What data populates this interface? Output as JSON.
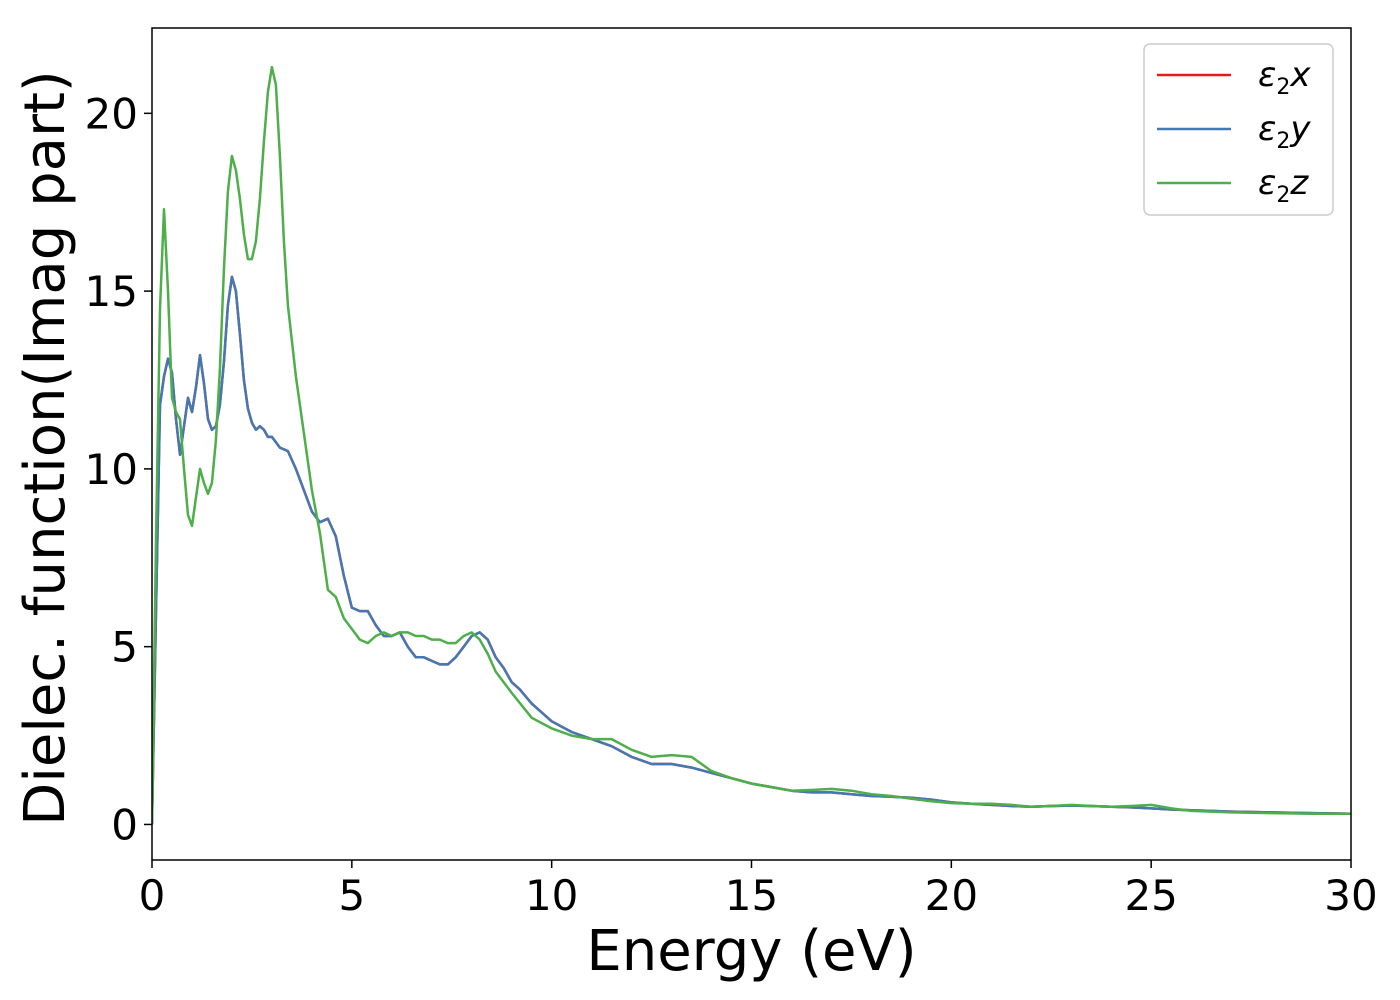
{
  "chart_data": {
    "type": "line",
    "xlabel": "Energy (eV)",
    "ylabel": "Dielec. function(Imag part)",
    "xlim": [
      0,
      30
    ],
    "ylim": [
      -1,
      22.4
    ],
    "xticks": [
      0,
      5,
      10,
      15,
      20,
      25,
      30
    ],
    "yticks": [
      0,
      5,
      10,
      15,
      20
    ],
    "legend_position": "top-right",
    "series": [
      {
        "name": "ε2x",
        "legend_main": "ε",
        "legend_sub": "2",
        "legend_var": "x",
        "color": "#e41a1c",
        "x": [
          0,
          0.1,
          0.2,
          0.3,
          0.4,
          0.5,
          0.6,
          0.7,
          0.8,
          0.9,
          1.0,
          1.1,
          1.2,
          1.3,
          1.4,
          1.5,
          1.6,
          1.7,
          1.8,
          1.9,
          2.0,
          2.1,
          2.2,
          2.3,
          2.4,
          2.5,
          2.6,
          2.7,
          2.8,
          2.9,
          3.0,
          3.2,
          3.4,
          3.6,
          3.8,
          4.0,
          4.2,
          4.4,
          4.6,
          4.8,
          5.0,
          5.2,
          5.4,
          5.6,
          5.8,
          6.0,
          6.2,
          6.4,
          6.6,
          6.8,
          7.0,
          7.2,
          7.4,
          7.6,
          7.8,
          8.0,
          8.2,
          8.4,
          8.6,
          8.8,
          9.0,
          9.2,
          9.5,
          10.0,
          10.5,
          11.0,
          11.5,
          12.0,
          12.5,
          13.0,
          13.5,
          14.0,
          14.5,
          15.0,
          15.5,
          16.0,
          16.5,
          17.0,
          17.5,
          18.0,
          18.5,
          19.0,
          19.5,
          20.0,
          20.5,
          21.0,
          21.5,
          22.0,
          22.5,
          23.0,
          23.5,
          24.0,
          24.5,
          25.0,
          25.5,
          26.0,
          26.5,
          27.0,
          27.5,
          28.0,
          28.5,
          29.0,
          29.5,
          30.0
        ],
        "y": [
          0,
          6.0,
          11.8,
          12.6,
          13.1,
          12.7,
          11.4,
          10.4,
          11.2,
          12.0,
          11.6,
          12.3,
          13.2,
          12.4,
          11.4,
          11.1,
          11.2,
          11.8,
          13.0,
          14.6,
          15.4,
          15.0,
          13.8,
          12.5,
          11.7,
          11.3,
          11.1,
          11.2,
          11.1,
          10.9,
          10.9,
          10.6,
          10.5,
          10.0,
          9.4,
          8.8,
          8.5,
          8.6,
          8.1,
          7.0,
          6.1,
          6.0,
          6.0,
          5.6,
          5.3,
          5.3,
          5.4,
          5.0,
          4.7,
          4.7,
          4.6,
          4.5,
          4.5,
          4.7,
          5.0,
          5.3,
          5.4,
          5.2,
          4.7,
          4.4,
          4.0,
          3.8,
          3.4,
          2.9,
          2.6,
          2.4,
          2.2,
          1.9,
          1.7,
          1.7,
          1.6,
          1.45,
          1.3,
          1.15,
          1.05,
          0.95,
          0.9,
          0.9,
          0.85,
          0.8,
          0.78,
          0.75,
          0.7,
          0.62,
          0.58,
          0.55,
          0.52,
          0.5,
          0.52,
          0.53,
          0.52,
          0.5,
          0.48,
          0.45,
          0.42,
          0.4,
          0.38,
          0.36,
          0.35,
          0.34,
          0.33,
          0.32,
          0.31,
          0.3
        ]
      },
      {
        "name": "ε2y",
        "legend_main": "ε",
        "legend_sub": "2",
        "legend_var": "y",
        "color": "#4478b3",
        "x": [
          0,
          0.1,
          0.2,
          0.3,
          0.4,
          0.5,
          0.6,
          0.7,
          0.8,
          0.9,
          1.0,
          1.1,
          1.2,
          1.3,
          1.4,
          1.5,
          1.6,
          1.7,
          1.8,
          1.9,
          2.0,
          2.1,
          2.2,
          2.3,
          2.4,
          2.5,
          2.6,
          2.7,
          2.8,
          2.9,
          3.0,
          3.2,
          3.4,
          3.6,
          3.8,
          4.0,
          4.2,
          4.4,
          4.6,
          4.8,
          5.0,
          5.2,
          5.4,
          5.6,
          5.8,
          6.0,
          6.2,
          6.4,
          6.6,
          6.8,
          7.0,
          7.2,
          7.4,
          7.6,
          7.8,
          8.0,
          8.2,
          8.4,
          8.6,
          8.8,
          9.0,
          9.2,
          9.5,
          10.0,
          10.5,
          11.0,
          11.5,
          12.0,
          12.5,
          13.0,
          13.5,
          14.0,
          14.5,
          15.0,
          15.5,
          16.0,
          16.5,
          17.0,
          17.5,
          18.0,
          18.5,
          19.0,
          19.5,
          20.0,
          20.5,
          21.0,
          21.5,
          22.0,
          22.5,
          23.0,
          23.5,
          24.0,
          24.5,
          25.0,
          25.5,
          26.0,
          26.5,
          27.0,
          27.5,
          28.0,
          28.5,
          29.0,
          29.5,
          30.0
        ],
        "y": [
          0,
          6.0,
          11.8,
          12.6,
          13.1,
          12.7,
          11.4,
          10.4,
          11.2,
          12.0,
          11.6,
          12.3,
          13.2,
          12.4,
          11.4,
          11.1,
          11.2,
          11.8,
          13.0,
          14.6,
          15.4,
          15.0,
          13.8,
          12.5,
          11.7,
          11.3,
          11.1,
          11.2,
          11.1,
          10.9,
          10.9,
          10.6,
          10.5,
          10.0,
          9.4,
          8.8,
          8.5,
          8.6,
          8.1,
          7.0,
          6.1,
          6.0,
          6.0,
          5.6,
          5.3,
          5.3,
          5.4,
          5.0,
          4.7,
          4.7,
          4.6,
          4.5,
          4.5,
          4.7,
          5.0,
          5.3,
          5.4,
          5.2,
          4.7,
          4.4,
          4.0,
          3.8,
          3.4,
          2.9,
          2.6,
          2.4,
          2.2,
          1.9,
          1.7,
          1.7,
          1.6,
          1.45,
          1.3,
          1.15,
          1.05,
          0.95,
          0.9,
          0.9,
          0.85,
          0.8,
          0.78,
          0.75,
          0.7,
          0.62,
          0.58,
          0.55,
          0.52,
          0.5,
          0.52,
          0.53,
          0.52,
          0.5,
          0.48,
          0.45,
          0.42,
          0.4,
          0.38,
          0.36,
          0.35,
          0.34,
          0.33,
          0.32,
          0.31,
          0.3
        ]
      },
      {
        "name": "ε2z",
        "legend_main": "ε",
        "legend_sub": "2",
        "legend_var": "z",
        "color": "#4daf4a",
        "x": [
          0,
          0.1,
          0.2,
          0.3,
          0.4,
          0.5,
          0.6,
          0.7,
          0.8,
          0.9,
          1.0,
          1.1,
          1.2,
          1.3,
          1.4,
          1.5,
          1.6,
          1.7,
          1.8,
          1.9,
          2.0,
          2.1,
          2.2,
          2.3,
          2.4,
          2.5,
          2.6,
          2.7,
          2.8,
          2.9,
          3.0,
          3.1,
          3.2,
          3.3,
          3.4,
          3.5,
          3.6,
          3.8,
          4.0,
          4.2,
          4.4,
          4.6,
          4.8,
          5.0,
          5.2,
          5.4,
          5.6,
          5.8,
          6.0,
          6.2,
          6.4,
          6.6,
          6.8,
          7.0,
          7.2,
          7.4,
          7.6,
          7.8,
          8.0,
          8.2,
          8.4,
          8.6,
          8.8,
          9.0,
          9.5,
          10.0,
          10.5,
          11.0,
          11.5,
          12.0,
          12.5,
          13.0,
          13.5,
          14.0,
          14.5,
          15.0,
          15.5,
          16.0,
          16.5,
          17.0,
          17.5,
          18.0,
          18.5,
          19.0,
          19.5,
          20.0,
          20.5,
          21.0,
          21.5,
          22.0,
          22.5,
          23.0,
          23.5,
          24.0,
          24.5,
          25.0,
          25.5,
          26.0,
          26.5,
          27.0,
          27.5,
          28.0,
          28.5,
          29.0,
          29.5,
          30.0
        ],
        "y": [
          0,
          8.0,
          14.5,
          17.3,
          15.0,
          12.0,
          11.6,
          11.4,
          10.0,
          8.7,
          8.4,
          9.2,
          10.0,
          9.6,
          9.3,
          9.6,
          10.8,
          12.8,
          15.6,
          17.8,
          18.8,
          18.4,
          17.6,
          16.6,
          15.9,
          15.9,
          16.4,
          17.6,
          19.2,
          20.6,
          21.3,
          20.8,
          18.8,
          16.4,
          14.6,
          13.6,
          12.6,
          11.0,
          9.4,
          8.2,
          6.6,
          6.4,
          5.8,
          5.5,
          5.2,
          5.1,
          5.3,
          5.4,
          5.3,
          5.4,
          5.4,
          5.3,
          5.3,
          5.2,
          5.2,
          5.1,
          5.1,
          5.3,
          5.4,
          5.2,
          4.8,
          4.3,
          4.0,
          3.7,
          3.0,
          2.7,
          2.5,
          2.4,
          2.4,
          2.1,
          1.9,
          1.95,
          1.9,
          1.5,
          1.3,
          1.15,
          1.05,
          0.95,
          0.97,
          1.0,
          0.95,
          0.85,
          0.8,
          0.72,
          0.65,
          0.6,
          0.58,
          0.58,
          0.55,
          0.5,
          0.52,
          0.55,
          0.52,
          0.5,
          0.52,
          0.55,
          0.45,
          0.38,
          0.36,
          0.34,
          0.33,
          0.32,
          0.31,
          0.3,
          0.3,
          0.3
        ]
      }
    ]
  }
}
